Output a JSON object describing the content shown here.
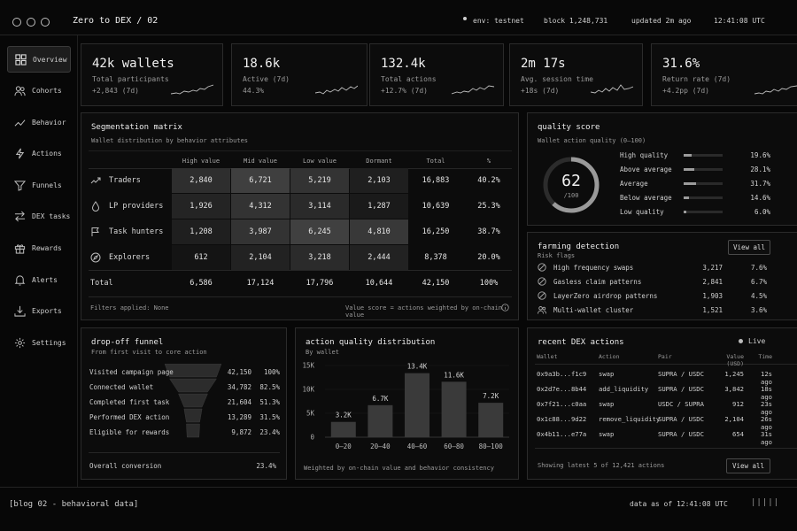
{
  "window": {
    "title": "Zero to DEX / 02",
    "env": "env: testnet",
    "block": "block 1,248,731",
    "updated": "updated 2m ago",
    "clock": "12:41:08 UTC"
  },
  "sidebar": {
    "items": [
      {
        "label": "Overview",
        "icon": "grid-icon",
        "active": true
      },
      {
        "label": "Cohorts",
        "icon": "users-icon"
      },
      {
        "label": "Behavior",
        "icon": "trend-icon"
      },
      {
        "label": "Actions",
        "icon": "bolt-icon"
      },
      {
        "label": "Funnels",
        "icon": "funnel-icon"
      },
      {
        "label": "DEX tasks",
        "icon": "swap-icon"
      },
      {
        "label": "Rewards",
        "icon": "gift-icon"
      },
      {
        "label": "Alerts",
        "icon": "bell-icon"
      },
      {
        "label": "Exports",
        "icon": "download-icon"
      },
      {
        "label": "Settings",
        "icon": "gear-icon"
      }
    ]
  },
  "kpis": [
    {
      "value": "42k wallets",
      "label": "Total participants",
      "change": "+2,843 (7d)"
    },
    {
      "value": "18.6k",
      "label": "Active (7d)",
      "change": "44.3%"
    },
    {
      "value": "132.4k",
      "label": "Total actions",
      "change": "+12.7% (7d)"
    },
    {
      "value": "2m 17s",
      "label": "Avg. session time",
      "change": "+18s (7d)"
    },
    {
      "value": "31.6%",
      "label": "Return rate (7d)",
      "change": "+4.2pp (7d)"
    }
  ],
  "matrix": {
    "title": "Segmentation matrix",
    "subtitle": "Wallet distribution by behavior attributes",
    "columns": [
      "High value",
      "Mid value",
      "Low value",
      "Dormant",
      "Total",
      "%"
    ],
    "rows": [
      {
        "label": "Traders",
        "icon": "chart-icon",
        "cells": [
          "2,840",
          "6,721",
          "5,219",
          "2,103",
          "16,883",
          "40.2%"
        ]
      },
      {
        "label": "LP providers",
        "icon": "drop-icon",
        "cells": [
          "1,926",
          "4,312",
          "3,114",
          "1,287",
          "10,639",
          "25.3%"
        ]
      },
      {
        "label": "Task hunters",
        "icon": "flag-icon",
        "cells": [
          "1,208",
          "3,987",
          "6,245",
          "4,810",
          "16,250",
          "38.7%"
        ]
      },
      {
        "label": "Explorers",
        "icon": "compass-icon",
        "cells": [
          "612",
          "2,104",
          "3,218",
          "2,444",
          "8,378",
          "20.0%"
        ]
      }
    ],
    "total": {
      "label": "Total",
      "cells": [
        "6,586",
        "17,124",
        "17,796",
        "10,644",
        "42,150",
        "100%"
      ]
    },
    "filters": "Filters applied:  None",
    "note": "Value score = actions weighted by on-chain value"
  },
  "quality": {
    "title": "quality score",
    "subtitle": "Wallet action quality (0–100)",
    "score": "62",
    "score_max": "/100",
    "score_value": 62,
    "rows": [
      {
        "label": "High quality",
        "pct": "19.6%",
        "fill": 0.196
      },
      {
        "label": "Above average",
        "pct": "28.1%",
        "fill": 0.281
      },
      {
        "label": "Average",
        "pct": "31.7%",
        "fill": 0.317
      },
      {
        "label": "Below average",
        "pct": "14.6%",
        "fill": 0.146
      },
      {
        "label": "Low quality",
        "pct": "6.0%",
        "fill": 0.06
      }
    ]
  },
  "farming": {
    "title": "farming detection",
    "subtitle": "Risk flags",
    "button": "View all",
    "rows": [
      {
        "label": "High frequency swaps",
        "count": "3,217",
        "pct": "7.6%"
      },
      {
        "label": "Gasless claim patterns",
        "count": "2,841",
        "pct": "6.7%"
      },
      {
        "label": "LayerZero airdrop patterns",
        "count": "1,903",
        "pct": "4.5%"
      },
      {
        "label": "Multi-wallet cluster",
        "count": "1,521",
        "pct": "3.6%"
      }
    ]
  },
  "funnel": {
    "title": "drop-off funnel",
    "subtitle": "From first visit to core action",
    "steps": [
      {
        "label": "Visited campaign page",
        "count": "42,150",
        "pct": "100%",
        "value": 100
      },
      {
        "label": "Connected wallet",
        "count": "34,782",
        "pct": "82.5%",
        "value": 82.5
      },
      {
        "label": "Completed first task",
        "count": "21,604",
        "pct": "51.3%",
        "value": 51.3
      },
      {
        "label": "Performed DEX action",
        "count": "13,289",
        "pct": "31.5%",
        "value": 31.5
      },
      {
        "label": "Eligible for rewards",
        "count": "9,872",
        "pct": "23.4%",
        "value": 23.4
      }
    ],
    "overall_label": "Overall conversion",
    "overall_value": "23.4%"
  },
  "chart_data": {
    "type": "bar",
    "title": "action quality distribution",
    "subtitle": "By wallet",
    "categories": [
      "0–20",
      "20–40",
      "40–60",
      "60–80",
      "80–100"
    ],
    "values": [
      3200,
      6700,
      13400,
      11600,
      7200
    ],
    "data_labels": [
      "3.2K",
      "6.7K",
      "13.4K",
      "11.6K",
      "7.2K"
    ],
    "ylim": [
      0,
      15000
    ],
    "yticks": [
      0,
      5000,
      10000,
      15000
    ],
    "ytick_labels": [
      "0",
      "5K",
      "10K",
      "15K"
    ],
    "grid": true,
    "caption": "Weighted by on-chain value and behavior consistency"
  },
  "dex": {
    "title": "recent DEX actions",
    "live": "Live",
    "columns": [
      "Wallet",
      "Action",
      "Pair",
      "Value (USD)",
      "Time"
    ],
    "rows": [
      [
        "0x9a3b...f1c9",
        "swap",
        "SUPRA / USDC",
        "1,245",
        "12s ago"
      ],
      [
        "0x2d7e...8b44",
        "add_liquidity",
        "SUPRA / USDC",
        "3,842",
        "18s ago"
      ],
      [
        "0x7f21...c0aa",
        "swap",
        "USDC / SUPRA",
        "912",
        "23s ago"
      ],
      [
        "0x1c88...9d22",
        "remove_liquidity",
        "SUPRA / USDC",
        "2,104",
        "26s ago"
      ],
      [
        "0x4b11...e77a",
        "swap",
        "SUPRA / USDC",
        "654",
        "31s ago"
      ]
    ],
    "footer": "Showing latest 5 of 12,421 actions",
    "button": "View all"
  },
  "status": {
    "left": "[blog 02 - behavioral data]",
    "right": "data as of 12:41:08 UTC",
    "bars": "|||||"
  },
  "colors": {
    "bg": "#070707",
    "panel": "#0c0c0c",
    "border": "#2b2b2b",
    "accent": "#e6e6e6"
  }
}
